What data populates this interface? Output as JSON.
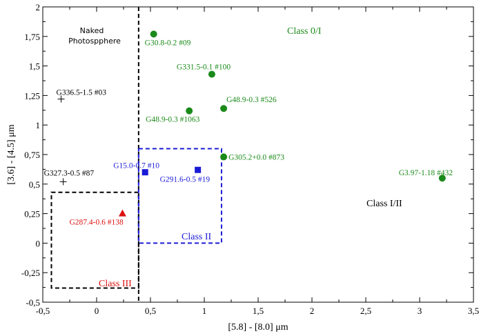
{
  "chart_data": {
    "type": "scatter",
    "title": "",
    "xlabel": "[5.8] - [8.0]  μm",
    "ylabel": "[3.6] - [4.5] μm",
    "xlim": [
      -0.5,
      3.5
    ],
    "ylim": [
      -0.5,
      2.0
    ],
    "xticks": [
      -0.5,
      0,
      0.5,
      1,
      1.5,
      2,
      2.5,
      3,
      3.5
    ],
    "xtick_labels": [
      "-0,5",
      "0",
      "0,5",
      "1",
      "1,5",
      "2",
      "2,5",
      "3",
      "3,5"
    ],
    "yticks": [
      -0.5,
      -0.25,
      0,
      0.25,
      0.5,
      0.75,
      1,
      1.25,
      1.5,
      1.75,
      2
    ],
    "ytick_labels": [
      "-0,5",
      "-0,25",
      "0",
      "0,25",
      "0,5",
      "0,75",
      "1",
      "1,25",
      "1,5",
      "1,75",
      "2"
    ],
    "grid": false,
    "colors": {
      "class_0_i": "#1a8a1a",
      "class_ii": "#1a1ad6",
      "class_iii": "#dd1111",
      "naked": "#000000"
    },
    "series": [
      {
        "name": "Class 0/I",
        "marker": "circle",
        "color": "#1a8a1a",
        "points": [
          {
            "x": 0.53,
            "y": 1.77,
            "label": "G30.8-0.2 #09"
          },
          {
            "x": 1.07,
            "y": 1.43,
            "label": "G331.5-0.1 #100"
          },
          {
            "x": 1.18,
            "y": 1.14,
            "label": "G48.9-0.3 #526"
          },
          {
            "x": 0.86,
            "y": 1.12,
            "label": "G48.9-0.3 #1063"
          },
          {
            "x": 1.18,
            "y": 0.73,
            "label": "G305.2+0.0 #873"
          },
          {
            "x": 3.21,
            "y": 0.55,
            "label": "G3.97-1.18 #432"
          }
        ]
      },
      {
        "name": "Class II",
        "marker": "square",
        "color": "#1a1ad6",
        "points": [
          {
            "x": 0.45,
            "y": 0.6,
            "label": "G15.0-0.7 #10"
          },
          {
            "x": 0.94,
            "y": 0.62,
            "label": "G291.6-0.5 #19"
          }
        ]
      },
      {
        "name": "Class III",
        "marker": "triangle",
        "color": "#dd1111",
        "points": [
          {
            "x": 0.24,
            "y": 0.25,
            "label": "G287.4-0.6 #138"
          }
        ]
      },
      {
        "name": "Naked Photosphere",
        "marker": "plus",
        "color": "#000000",
        "points": [
          {
            "x": -0.33,
            "y": 1.22,
            "label": "G336.5-1.5 #03"
          },
          {
            "x": -0.31,
            "y": 0.52,
            "label": "G327.3-0.5 #87"
          }
        ]
      }
    ],
    "regions": [
      {
        "name": "Naked Photosphere boundary",
        "color": "#000000",
        "corners": [
          [
            0.39,
            2.0
          ],
          [
            0.39,
            -0.5
          ]
        ]
      },
      {
        "name": "Class III",
        "color": "#000000",
        "x_range": [
          -0.42,
          0.39
        ],
        "y_range": [
          -0.38,
          0.43
        ]
      },
      {
        "name": "Class II",
        "color": "#1a1ad6",
        "x_range": [
          0.39,
          1.16
        ],
        "y_range": [
          0.0,
          0.8
        ]
      }
    ],
    "annotations": {
      "naked_line1": "Naked",
      "naked_line2": "Photospphere",
      "class_0_i": "Class 0/I",
      "class_ii": "Class II",
      "class_iii": "Class III",
      "class_i_ii": "Class I/II"
    }
  }
}
